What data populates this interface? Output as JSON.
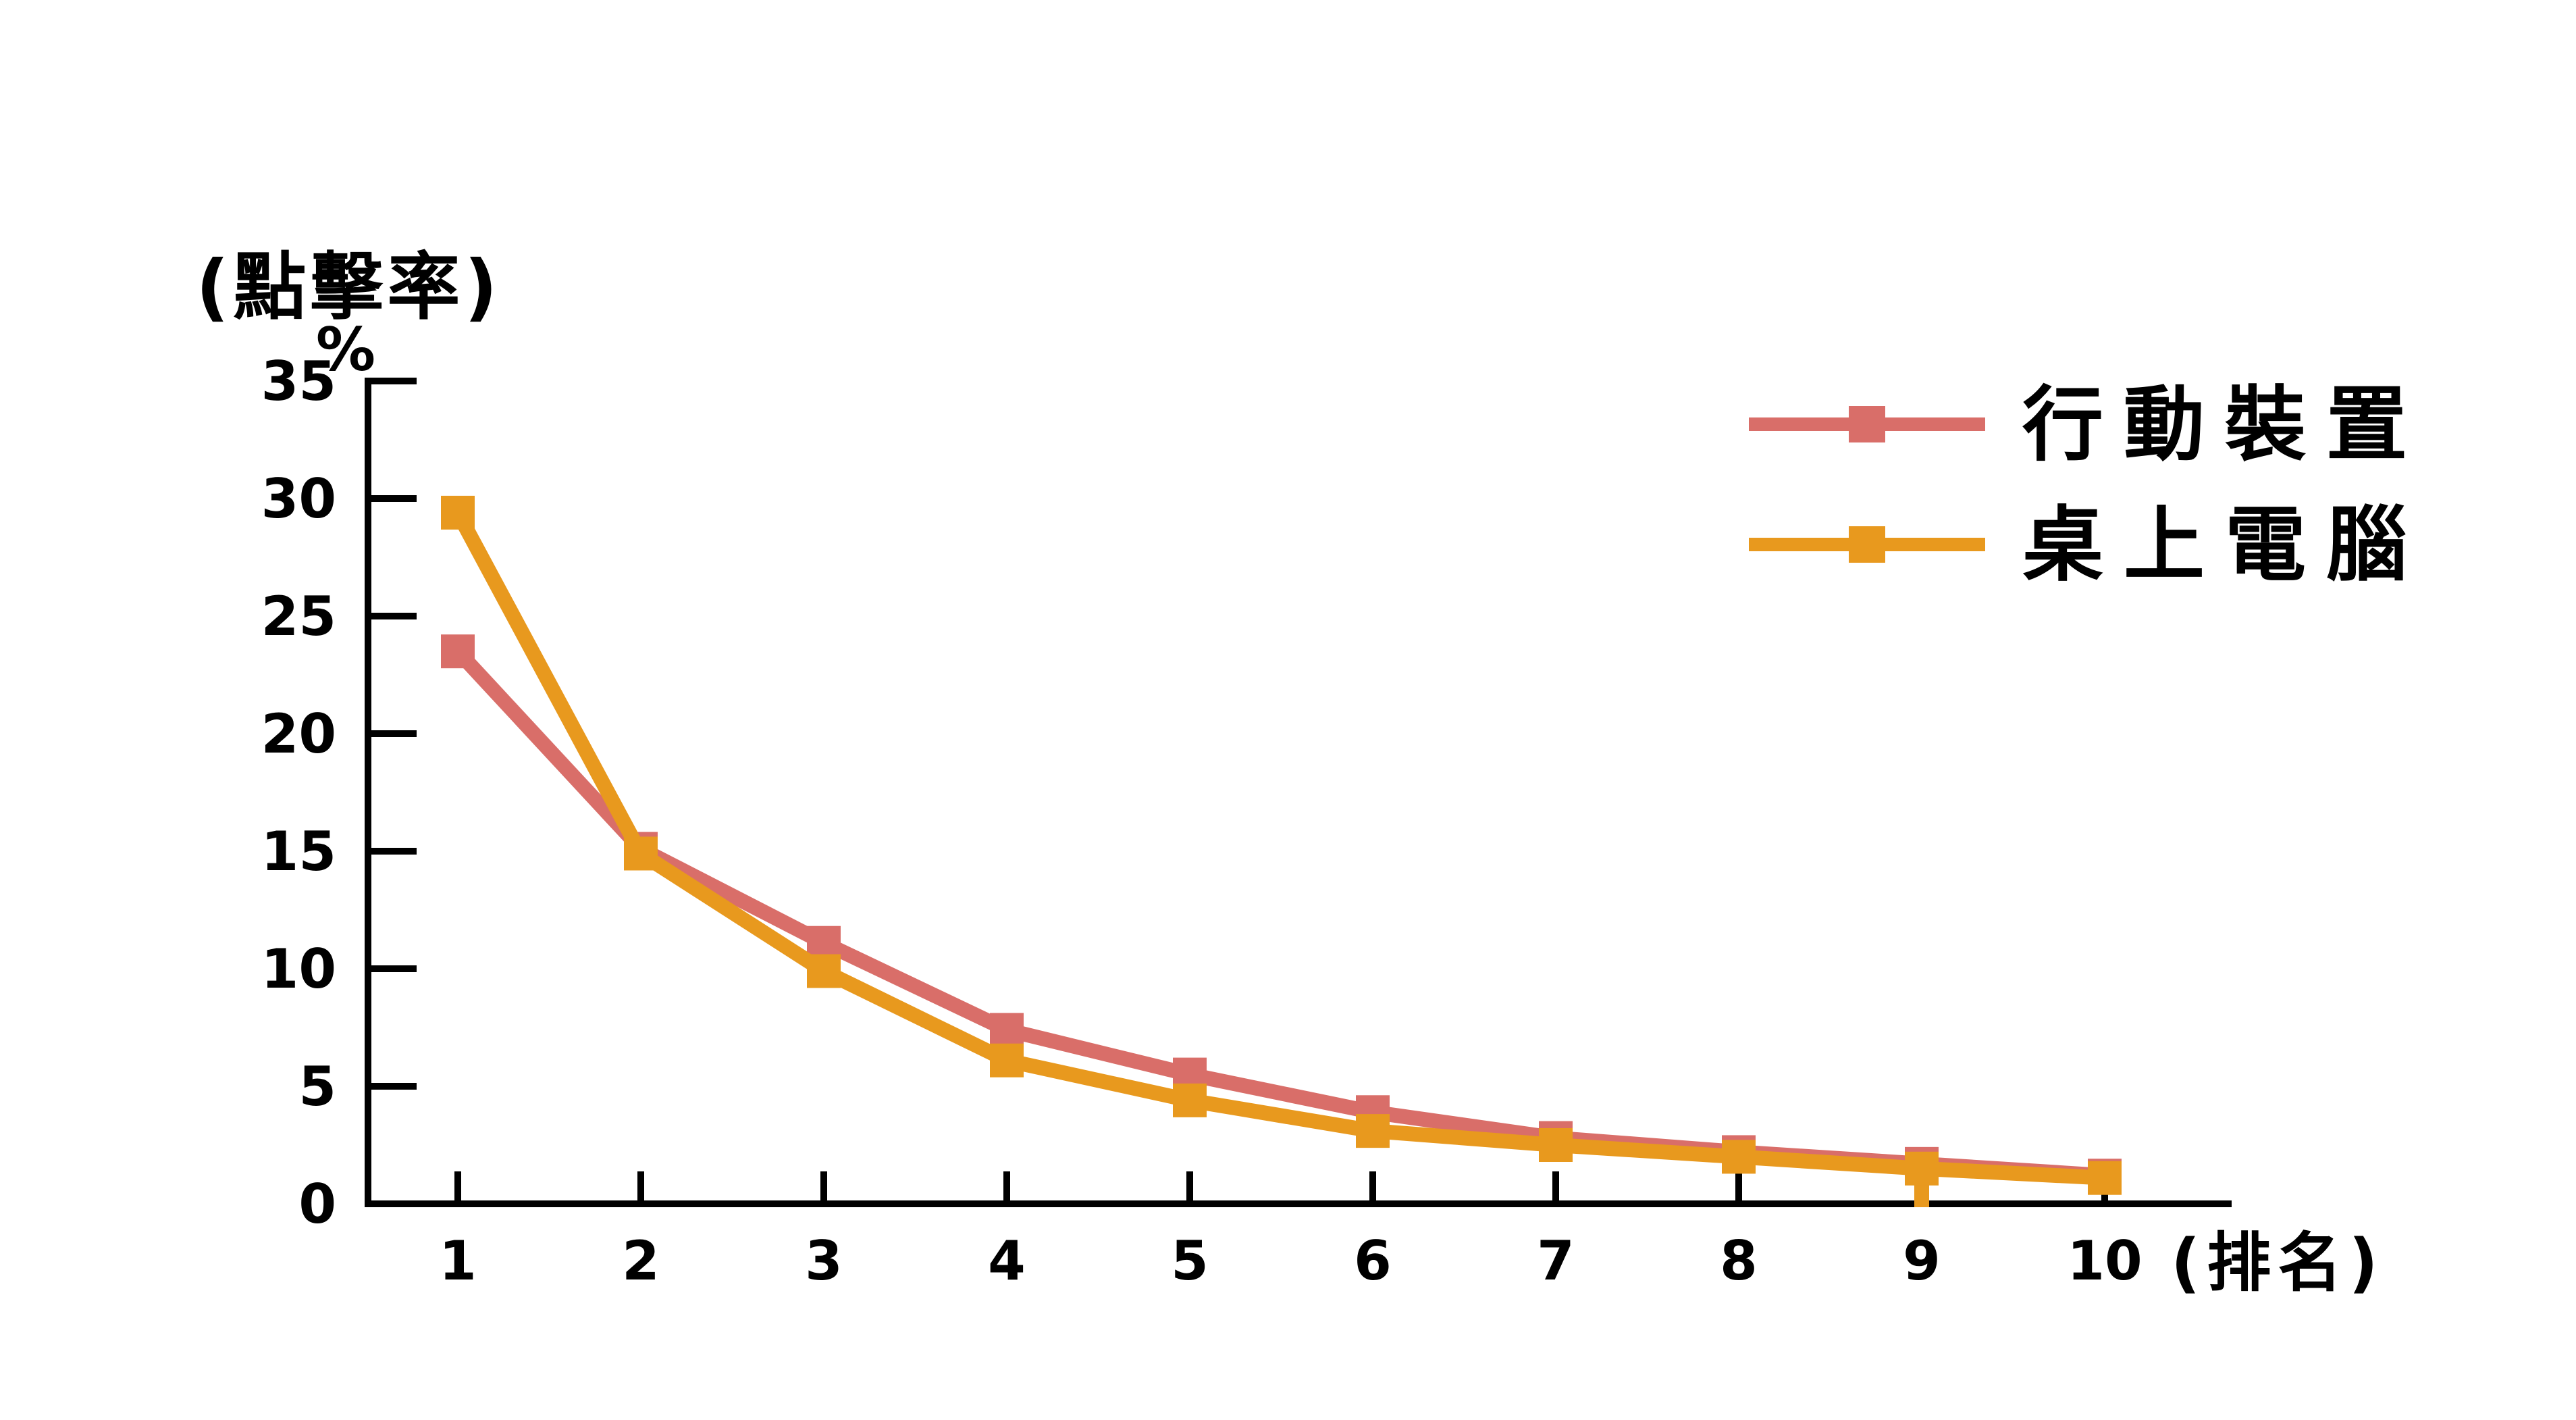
{
  "page": {
    "background": "#ffffff",
    "axis_color": "#000000"
  },
  "chart_data": {
    "type": "line",
    "title": "",
    "marker": "square",
    "grid": false,
    "legend_position": "top-right",
    "x_axis": {
      "label": "(排名)",
      "ticks": [
        "1",
        "2",
        "3",
        "4",
        "5",
        "6",
        "7",
        "8",
        "9",
        "10"
      ]
    },
    "y_axis": {
      "label_line1": "(點擊率)",
      "label_line2": "%",
      "ticks": [
        0,
        5,
        10,
        15,
        20,
        25,
        30,
        35
      ],
      "range": [
        0,
        35
      ]
    },
    "categories": [
      1,
      2,
      3,
      4,
      5,
      6,
      7,
      8,
      9,
      10
    ],
    "series": [
      {
        "name": "行動裝置",
        "color": "#D96E69",
        "values": [
          23.5,
          15.1,
          11.1,
          7.4,
          5.5,
          3.9,
          2.8,
          2.2,
          1.7,
          1.2
        ]
      },
      {
        "name": "桌上電腦",
        "color": "#E8991E",
        "values": [
          29.4,
          14.9,
          9.9,
          6.1,
          4.4,
          3.1,
          2.5,
          2.0,
          1.5,
          1.1
        ],
        "drop_line_rank": 9
      }
    ]
  }
}
